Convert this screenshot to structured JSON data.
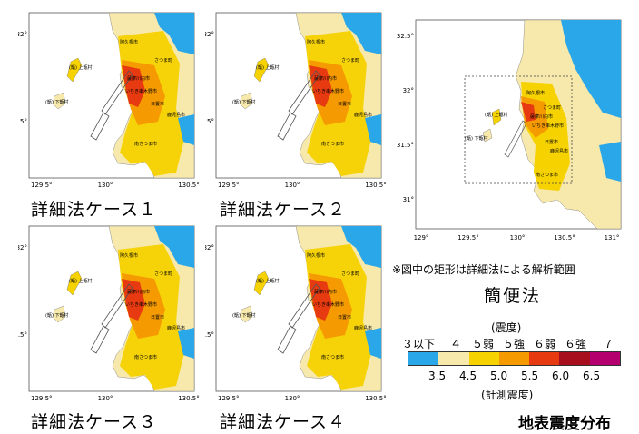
{
  "panels": [
    {
      "caption": "詳細法ケース１",
      "ticks_y": [
        "32°",
        "31.5°"
      ],
      "ticks_x": [
        "129.5°",
        "130°",
        "130.5°"
      ]
    },
    {
      "caption": "詳細法ケース２",
      "ticks_y": [
        "32°",
        "31.5°"
      ],
      "ticks_x": [
        "129.5°",
        "130°",
        "130.5°"
      ]
    },
    {
      "caption": "詳細法ケース３",
      "ticks_y": [
        "32°",
        "31.5°"
      ],
      "ticks_x": [
        "129.5°",
        "130°",
        "130.5°"
      ]
    },
    {
      "caption": "詳細法ケース４",
      "ticks_y": [
        "32°",
        "31.5°"
      ],
      "ticks_x": [
        "129.5°",
        "130°",
        "130.5°"
      ]
    }
  ],
  "place_labels": {
    "kami": "(甑) 上甑村",
    "shimo": "(甑) 下甑村",
    "akune": "阿久根市",
    "satsuma": "さつま町",
    "sendai": "薩摩川内市",
    "ichiki": "いちき串木野市",
    "hioki": "日置市",
    "minami": "南さつま市",
    "kagoshima": "鹿児島市"
  },
  "overview": {
    "ticks_y": [
      "32.5°",
      "32°",
      "31.5°",
      "31°"
    ],
    "ticks_x": [
      "129°",
      "129.5°",
      "130°",
      "130.5°",
      "131°"
    ],
    "note": "※図中の矩形は詳細法による解析範囲",
    "caption": "簡便法"
  },
  "legend": {
    "top_label": "(震度)",
    "intensity_classes": [
      "３以下",
      "４",
      "５弱",
      "５強",
      "６弱",
      "６強",
      "７"
    ],
    "instrumental_values": [
      "3.5",
      "4.5",
      "5.0",
      "5.5",
      "6.0",
      "6.5"
    ],
    "bottom_label": "(計測震度)",
    "colors": [
      "#2aa7e8",
      "#f7e8ac",
      "#f6d200",
      "#f59a00",
      "#e83a10",
      "#a80f1e",
      "#b4006e"
    ]
  },
  "title": "地表震度分布"
}
